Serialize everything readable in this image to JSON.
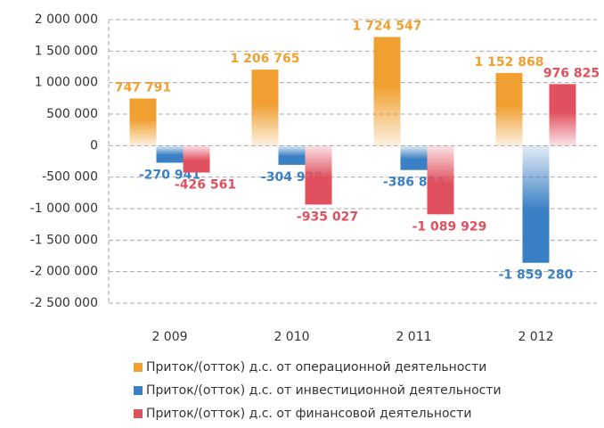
{
  "chart_data": {
    "type": "bar",
    "categories": [
      "2 009",
      "2 010",
      "2 011",
      "2 012"
    ],
    "series": [
      {
        "name": "Приток/(отток) д.с. от операционной деятельности",
        "color": "#f0a030",
        "values": [
          747791,
          1206765,
          1724547,
          1152868
        ],
        "value_labels": [
          "747 791",
          "1 206 765",
          "1 724 547",
          "1 152 868"
        ]
      },
      {
        "name": "Приток/(отток) д.с. от инвестиционной деятельности",
        "color": "#3a80c4",
        "values": [
          -270941,
          -304928,
          -386884,
          -1859280
        ],
        "value_labels": [
          "-270 941",
          "-304 928",
          "-386 884",
          "-1 859 280"
        ]
      },
      {
        "name": "Приток/(отток) д.с. от финансовой деятельности",
        "color": "#e0505e",
        "values": [
          -426561,
          -935027,
          -1089929,
          976825
        ],
        "value_labels": [
          "-426 561",
          "-935 027",
          "-1 089 929",
          "976 825"
        ]
      }
    ],
    "ylim": [
      -2500000,
      2000000
    ],
    "yticks": [
      {
        "value": -2500000,
        "label": "-2 500 000"
      },
      {
        "value": -2000000,
        "label": "-2 000 000"
      },
      {
        "value": -1500000,
        "label": "-1 500 000"
      },
      {
        "value": -1000000,
        "label": "-1 000 000"
      },
      {
        "value": -500000,
        "label": "-500 000"
      },
      0,
      {
        "value": 500000,
        "label": "500 000"
      },
      {
        "value": 1000000,
        "label": "1 000 000"
      },
      {
        "value": 1500000,
        "label": "1 500 000"
      },
      {
        "value": 2000000,
        "label": "2 000 000"
      }
    ],
    "grid": true
  }
}
